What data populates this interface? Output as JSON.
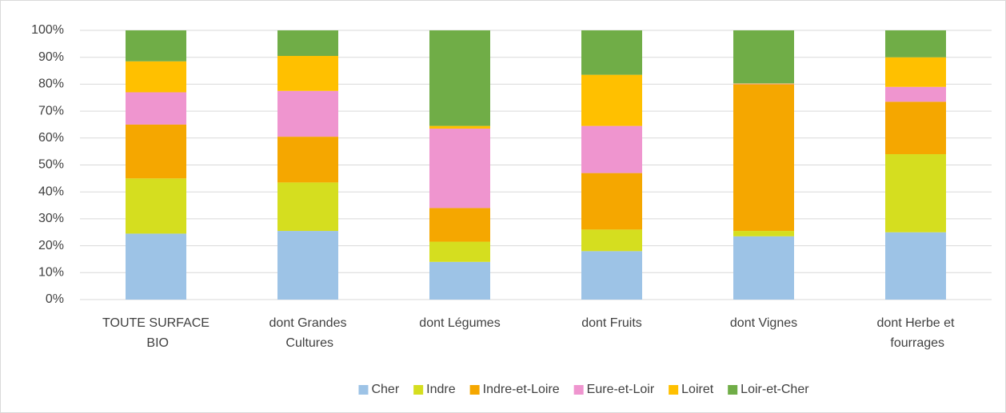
{
  "chart_data": {
    "type": "bar",
    "stacked": true,
    "categories": [
      "TOUTE SURFACE BIO",
      "dont Grandes Cultures",
      "dont Légumes",
      "dont Fruits",
      "dont Vignes",
      "dont Herbe et fourrages"
    ],
    "series": [
      {
        "name": "Cher",
        "color": "#9dc3e6",
        "values": [
          24.5,
          25.5,
          14,
          18,
          23.5,
          25
        ]
      },
      {
        "name": "Indre",
        "color": "#d5de1f",
        "values": [
          20.5,
          18,
          7.5,
          8,
          2,
          29
        ]
      },
      {
        "name": "Indre-et-Loire",
        "color": "#f5a700",
        "values": [
          20,
          17,
          12.5,
          21,
          54.5,
          19.5
        ]
      },
      {
        "name": "Eure-et-Loir",
        "color": "#ef95cf",
        "values": [
          12,
          17,
          29.5,
          17.5,
          0.2,
          5.5
        ]
      },
      {
        "name": "Loiret",
        "color": "#ffc000",
        "values": [
          11.5,
          13,
          1,
          19,
          0.1,
          11
        ]
      },
      {
        "name": "Loir-et-Cher",
        "color": "#70ad47",
        "values": [
          11.5,
          9.5,
          35.5,
          16.5,
          19.7,
          10
        ]
      }
    ],
    "ylim": [
      0,
      100
    ],
    "yticks": [
      {
        "value": 0,
        "label": "0%"
      },
      {
        "value": 10,
        "label": "10%"
      },
      {
        "value": 20,
        "label": "20%"
      },
      {
        "value": 30,
        "label": "30%"
      },
      {
        "value": 40,
        "label": "40%"
      },
      {
        "value": 50,
        "label": "50%"
      },
      {
        "value": 60,
        "label": "60%"
      },
      {
        "value": 70,
        "label": "70%"
      },
      {
        "value": 80,
        "label": "80%"
      },
      {
        "value": 90,
        "label": "90%"
      },
      {
        "value": 100,
        "label": "100%"
      }
    ],
    "grid": true,
    "legend": "bottom"
  }
}
